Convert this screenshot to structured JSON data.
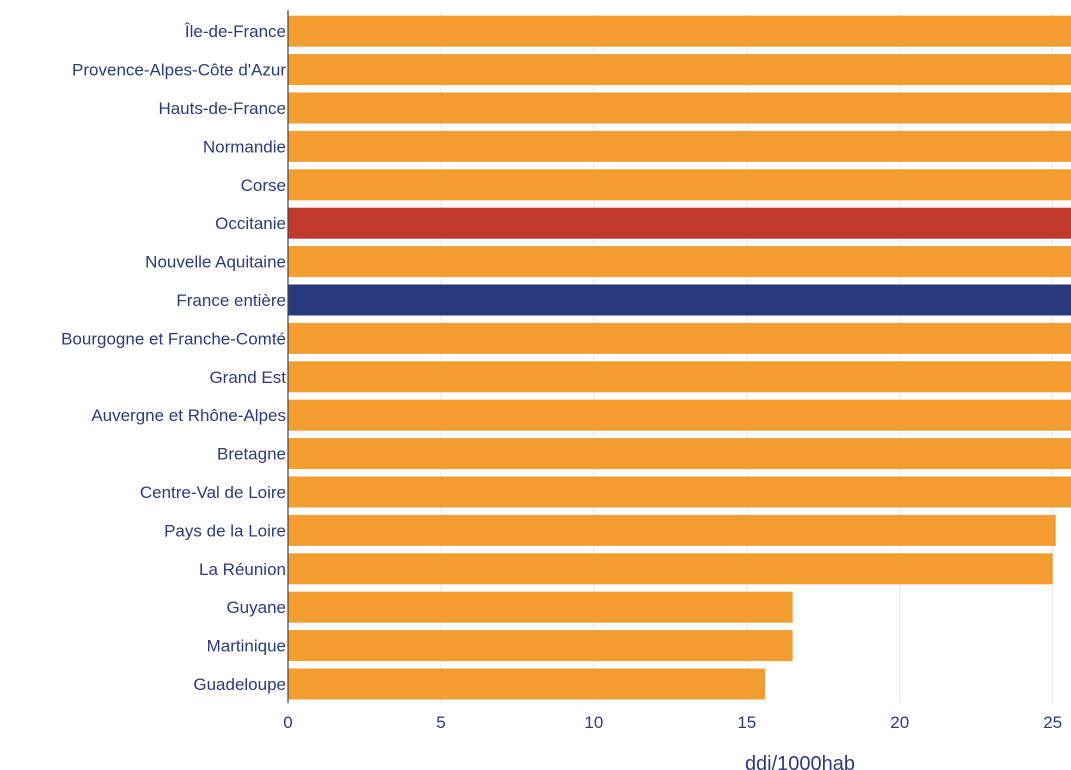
{
  "chart_data": {
    "type": "bar",
    "orientation": "horizontal",
    "xlabel": "ddj/1000hab",
    "xlim": [
      0,
      25.6
    ],
    "xticks": [
      0,
      5,
      10,
      15,
      20,
      25
    ],
    "grid": true,
    "categories": [
      "Île-de-France",
      "Provence-Alpes-Côte d'Azur",
      "Hauts-de-France",
      "Normandie",
      "Corse",
      "Occitanie",
      "Nouvelle Aquitaine",
      "France entière",
      "Bourgogne et Franche-Comté",
      "Grand Est",
      "Auvergne et Rhône-Alpes",
      "Bretagne",
      "Centre-Val de Loire",
      "Pays de la Loire",
      "La Réunion",
      "Guyane",
      "Martinique",
      "Guadeloupe"
    ],
    "values": [
      25.6,
      25.6,
      25.6,
      25.6,
      25.6,
      25.6,
      25.6,
      25.6,
      25.6,
      25.6,
      25.6,
      25.6,
      25.6,
      25.1,
      25.0,
      16.5,
      16.5,
      15.6
    ],
    "colors": {
      "default": "#f39c2f",
      "highlight": "#c0392b",
      "national": "#283a7c"
    },
    "bar_colors": [
      "default",
      "default",
      "default",
      "default",
      "default",
      "highlight",
      "default",
      "national",
      "default",
      "default",
      "default",
      "default",
      "default",
      "default",
      "default",
      "default",
      "default",
      "default"
    ]
  }
}
